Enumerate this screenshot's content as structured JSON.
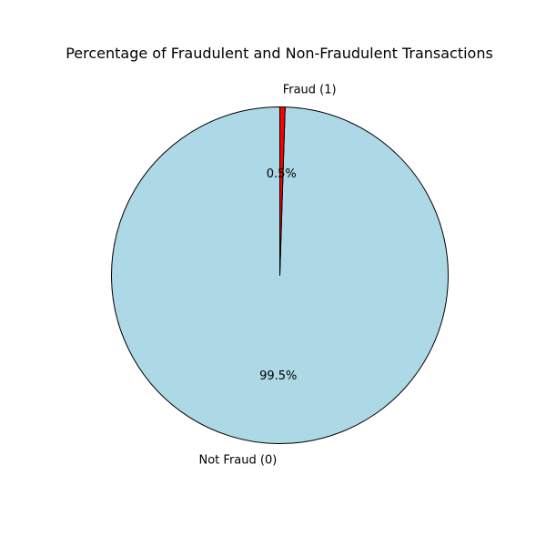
{
  "chart_data": {
    "type": "pie",
    "title": "Percentage of Fraudulent and Non-Fraudulent Transactions",
    "start_angle_deg": 90,
    "direction": "counterclockwise",
    "edge_color": "#000000",
    "slices": [
      {
        "label": "Not Fraud (0)",
        "value": 99.5,
        "pct_label": "99.5%",
        "color": "#add8e6"
      },
      {
        "label": "Fraud (1)",
        "value": 0.5,
        "pct_label": "0.5%",
        "color": "#ff0000"
      }
    ]
  }
}
